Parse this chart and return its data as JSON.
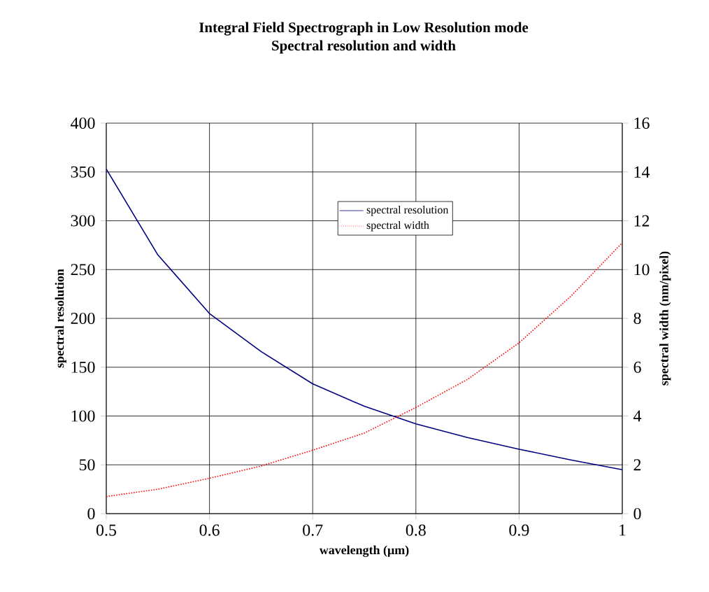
{
  "chart_data": {
    "type": "line",
    "title": "**Integral Field Spectrograph in Low Resolution mode**",
    "subtitle": "**Spectral resolution and width**",
    "xlabel": "**wavelength (µm)**",
    "ylabel": "**spectral resolution**",
    "y2label": "**spectral width (nm/pixel)**",
    "x": [
      0.5,
      0.55,
      0.6,
      0.65,
      0.7,
      0.75,
      0.8,
      0.85,
      0.9,
      0.95,
      1.0
    ],
    "series": [
      {
        "name": "spectral resolution",
        "color": "#000080",
        "line_style": "solid",
        "values": [
          353,
          265,
          205,
          166,
          133,
          110,
          92,
          78,
          66,
          55,
          45
        ]
      },
      {
        "name": "spectral width",
        "color": "#ff0000",
        "line_style": "dotted",
        "axis": "y2",
        "values": [
          0.7,
          1.0,
          1.45,
          1.95,
          2.6,
          3.3,
          4.35,
          5.5,
          7.0,
          8.9,
          11.1
        ]
      }
    ],
    "xlim": [
      0.5,
      1
    ],
    "xticks": [
      0.5,
      0.6,
      0.7,
      0.8,
      0.9,
      1
    ],
    "ylim": [
      0,
      400
    ],
    "yticks": [
      0,
      50,
      100,
      150,
      200,
      250,
      300,
      350,
      400
    ],
    "y2lim": [
      0,
      16
    ],
    "y2ticks": [
      0,
      2,
      4,
      6,
      8,
      10,
      12,
      14,
      16
    ],
    "grid": true,
    "legend": "top",
    "marker": "none"
  }
}
